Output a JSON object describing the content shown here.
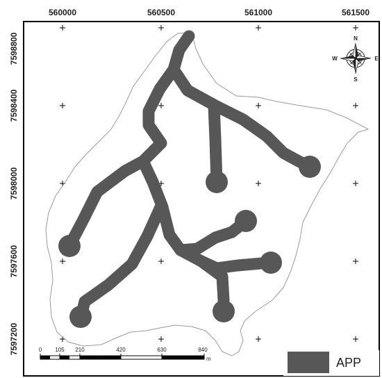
{
  "map": {
    "x_ticks": [
      "560000",
      "560500",
      "561000",
      "561500"
    ],
    "y_ticks": [
      "7598800",
      "7598400",
      "7598000",
      "7597600",
      "7597200"
    ],
    "scale_bar": {
      "labels": [
        "0",
        "105",
        "210",
        "420",
        "630",
        "840"
      ],
      "unit": "m"
    },
    "compass": {
      "n": "N",
      "s": "S",
      "e": "E",
      "w": "W"
    },
    "legend": {
      "label": "APP",
      "color": "#575757"
    },
    "colors": {
      "app": "#575757",
      "boundary": "#9a9a9a",
      "frame": "#000000"
    }
  }
}
